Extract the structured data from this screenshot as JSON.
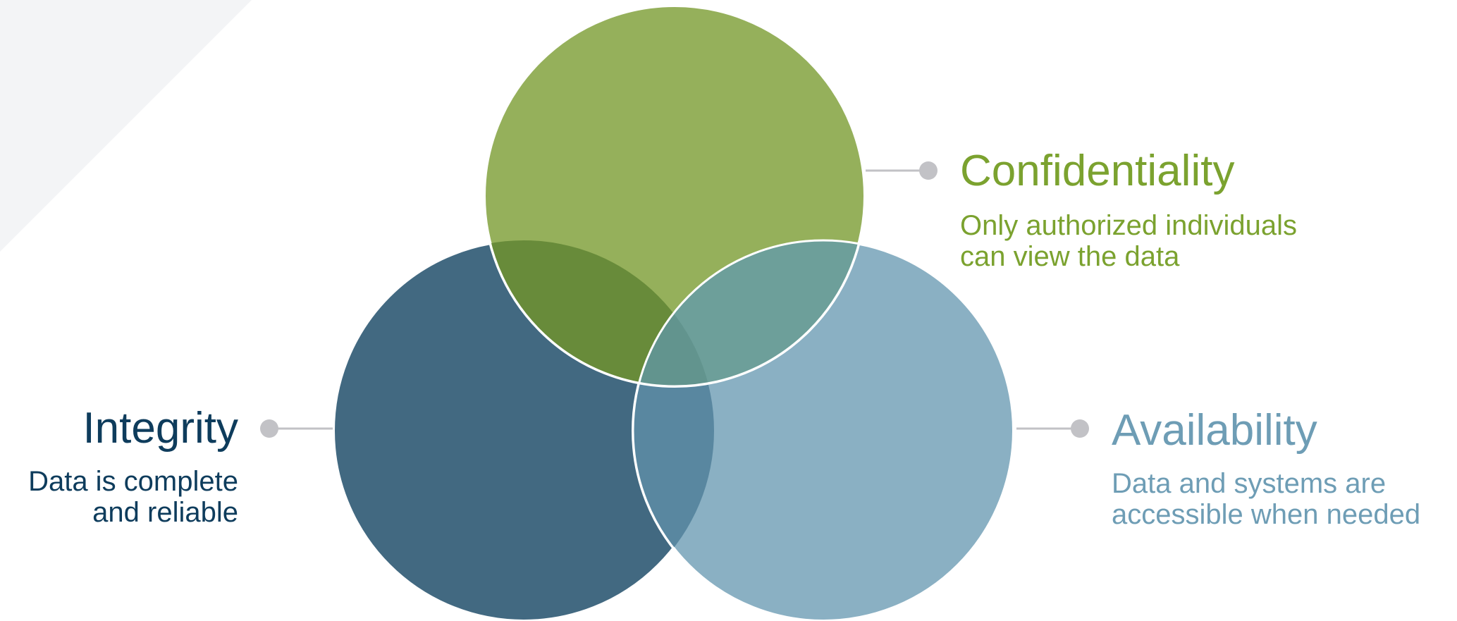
{
  "colors": {
    "green": "#7ba22f",
    "navy": "#0e3c5c",
    "blue": "#6e9db5",
    "green_fill": "#95b05b",
    "navy_fill": "#426981",
    "blue_fill": "#8ab0c3",
    "connector": "#c2c2c6",
    "background_triangle": "#f3f4f6"
  },
  "confidentiality": {
    "title": "Confidentiality",
    "desc_lines": [
      "Only authorized individuals",
      "can view the data"
    ]
  },
  "integrity": {
    "title": "Integrity",
    "desc_lines": [
      "Data is complete",
      "and reliable"
    ]
  },
  "availability": {
    "title": "Availability",
    "desc_lines": [
      "Data and systems are",
      "accessible when needed"
    ]
  }
}
